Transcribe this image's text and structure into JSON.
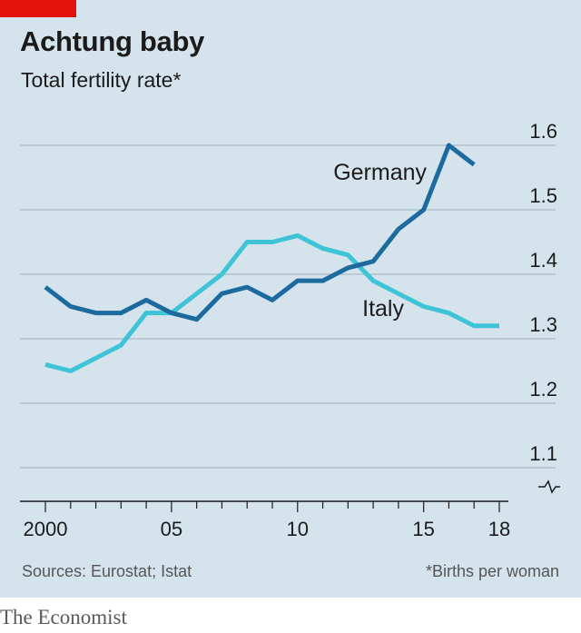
{
  "header": {
    "title": "Achtung baby",
    "subtitle": "Total fertility rate*"
  },
  "footer": {
    "sources": "Sources: Eurostat; Istat",
    "note": "*Births per woman",
    "brand": "The Economist"
  },
  "colors": {
    "background": "#d5e3ed",
    "germany": "#1d6b9e",
    "italy": "#3ec4d6",
    "accent_tag": "#e3120b",
    "grid": "#a9bac7"
  },
  "chart_data": {
    "type": "line",
    "title": "Achtung baby",
    "subtitle": "Total fertility rate*",
    "x": [
      2000,
      2001,
      2002,
      2003,
      2004,
      2005,
      2006,
      2007,
      2008,
      2009,
      2010,
      2011,
      2012,
      2013,
      2014,
      2015,
      2016,
      2017,
      2018
    ],
    "xtick_values": [
      2000,
      2005,
      2010,
      2015,
      2018
    ],
    "xtick_labels": [
      "2000",
      "05",
      "10",
      "15",
      "18"
    ],
    "xlim": [
      2000,
      2018
    ],
    "ylim": [
      1.1,
      1.6
    ],
    "ytick_values": [
      1.6,
      1.5,
      1.4,
      1.3,
      1.2,
      1.1
    ],
    "ytick_labels": [
      "1.6",
      "1.5",
      "1.4",
      "1.3",
      "1.2",
      "1.1"
    ],
    "y_axis_side": "right",
    "y_axis_break": true,
    "grid": true,
    "series": [
      {
        "name": "Germany",
        "label_position": "top-right",
        "color": "#1d6b9e",
        "values": [
          1.38,
          1.35,
          1.34,
          1.34,
          1.36,
          1.34,
          1.33,
          1.37,
          1.38,
          1.36,
          1.39,
          1.39,
          1.41,
          1.42,
          1.47,
          1.5,
          1.6,
          1.57,
          null
        ]
      },
      {
        "name": "Italy",
        "label_position": "middle-right",
        "color": "#3ec4d6",
        "values": [
          1.26,
          1.25,
          1.27,
          1.29,
          1.34,
          1.34,
          1.37,
          1.4,
          1.45,
          1.45,
          1.46,
          1.44,
          1.43,
          1.39,
          1.37,
          1.35,
          1.34,
          1.32,
          1.32
        ]
      }
    ],
    "annotations": [
      {
        "text": "Germany",
        "series": "Germany"
      },
      {
        "text": "Italy",
        "series": "Italy"
      }
    ]
  }
}
